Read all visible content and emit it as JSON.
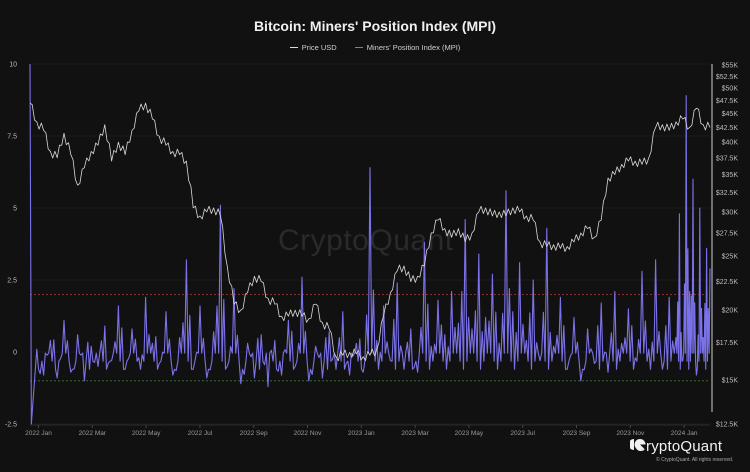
{
  "chart_data": {
    "type": "line",
    "title": "Bitcoin: Miners' Position Index (MPI)",
    "legend": [
      {
        "name": "Price USD",
        "color": "#d9d9d9"
      },
      {
        "name": "Miners' Position Index (MPI)",
        "color": "#7b72e9"
      }
    ],
    "legend_position": "top",
    "grid": true,
    "x_ticks": [
      "2022 Jan",
      "2022 Mar",
      "2022 May",
      "2022 Jul",
      "2022 Sep",
      "2022 Nov",
      "2023 Jan",
      "2023 Mar",
      "2023 May",
      "2023 Jul",
      "2023 Sep",
      "2023 Nov",
      "2024 Jan"
    ],
    "left_axis": {
      "label": "MPI",
      "ticks": [
        "10",
        "7.5",
        "5",
        "2.5",
        "0",
        "-2.5"
      ],
      "ylim": [
        -2.5,
        10
      ]
    },
    "right_axis": {
      "label": "Price USD",
      "scale": "log",
      "ticks": [
        "$55K",
        "$52.5K",
        "$50K",
        "$47.5K",
        "$45K",
        "$42.5K",
        "$40K",
        "$37.5K",
        "$35K",
        "$32.5K",
        "$30K",
        "$27.5K",
        "$25K",
        "$22.5K",
        "$20K",
        "$17.5K",
        "$15K",
        "$12.5K"
      ],
      "ylim": [
        12500,
        55000
      ]
    },
    "reference_lines": [
      {
        "value": 2.0,
        "axis": "left",
        "color": "#b03a3a",
        "style": "dashed"
      },
      {
        "value": -1.0,
        "axis": "left",
        "color": "#3f7a3a",
        "style": "dashed"
      }
    ],
    "x_range": [
      "2022-01-01",
      "2024-02-01"
    ],
    "series": [
      {
        "name": "Price USD",
        "color": "#d9d9d9",
        "x_frac": [
          0.0,
          0.01,
          0.02,
          0.03,
          0.04,
          0.05,
          0.06,
          0.07,
          0.08,
          0.09,
          0.1,
          0.11,
          0.12,
          0.13,
          0.14,
          0.15,
          0.16,
          0.17,
          0.18,
          0.19,
          0.2,
          0.21,
          0.22,
          0.23,
          0.24,
          0.25,
          0.26,
          0.27,
          0.28,
          0.29,
          0.3,
          0.31,
          0.32,
          0.33,
          0.34,
          0.35,
          0.36,
          0.37,
          0.38,
          0.39,
          0.4,
          0.41,
          0.42,
          0.43,
          0.44,
          0.45,
          0.46,
          0.47,
          0.48,
          0.49,
          0.5,
          0.51,
          0.52,
          0.53,
          0.54,
          0.55,
          0.56,
          0.57,
          0.58,
          0.59,
          0.6,
          0.61,
          0.62,
          0.63,
          0.64,
          0.65,
          0.66,
          0.67,
          0.68,
          0.69,
          0.7,
          0.71,
          0.72,
          0.73,
          0.74,
          0.75,
          0.76,
          0.77,
          0.78,
          0.79,
          0.8,
          0.81,
          0.82,
          0.83,
          0.84,
          0.85,
          0.86,
          0.87,
          0.88,
          0.89,
          0.9,
          0.91,
          0.92,
          0.93,
          0.94,
          0.95,
          0.96,
          0.97,
          0.98,
          0.99,
          1.0
        ],
        "values": [
          47000,
          43500,
          42000,
          38500,
          37500,
          41500,
          38000,
          33500,
          36000,
          38500,
          39500,
          43000,
          37000,
          40000,
          38000,
          42000,
          45500,
          47000,
          44000,
          41000,
          39500,
          38500,
          38000,
          37000,
          30500,
          29500,
          30000,
          30500,
          29500,
          24000,
          20500,
          20000,
          21500,
          23000,
          22500,
          21000,
          20500,
          19500,
          19500,
          20000,
          19500,
          19300,
          20500,
          19000,
          18500,
          16500,
          16600,
          16800,
          16700,
          16500,
          16600,
          17000,
          19500,
          21500,
          23500,
          24000,
          22500,
          23000,
          24000,
          27500,
          29000,
          28000,
          27000,
          28000,
          26500,
          27500,
          30000,
          30500,
          29500,
          30000,
          29500,
          30500,
          30000,
          29500,
          29000,
          26500,
          26000,
          26200,
          25800,
          26000,
          26500,
          27500,
          28000,
          27000,
          29000,
          34500,
          35000,
          36500,
          37000,
          37000,
          36500,
          37500,
          42500,
          43000,
          42000,
          43500,
          44000,
          42500,
          46000,
          43000,
          42500
        ]
      },
      {
        "name": "Miners' Position Index (MPI)",
        "color": "#7b72e9",
        "x_frac": [
          0.0,
          0.002,
          0.01,
          0.02,
          0.03,
          0.04,
          0.05,
          0.06,
          0.07,
          0.08,
          0.09,
          0.1,
          0.11,
          0.12,
          0.13,
          0.14,
          0.15,
          0.16,
          0.17,
          0.18,
          0.19,
          0.2,
          0.21,
          0.22,
          0.23,
          0.24,
          0.25,
          0.26,
          0.27,
          0.28,
          0.29,
          0.3,
          0.31,
          0.32,
          0.33,
          0.34,
          0.35,
          0.36,
          0.37,
          0.38,
          0.39,
          0.4,
          0.41,
          0.42,
          0.43,
          0.44,
          0.45,
          0.46,
          0.47,
          0.48,
          0.49,
          0.5,
          0.51,
          0.52,
          0.53,
          0.54,
          0.55,
          0.56,
          0.57,
          0.58,
          0.59,
          0.6,
          0.61,
          0.62,
          0.63,
          0.64,
          0.65,
          0.66,
          0.67,
          0.68,
          0.69,
          0.7,
          0.71,
          0.72,
          0.73,
          0.74,
          0.75,
          0.76,
          0.77,
          0.78,
          0.79,
          0.8,
          0.81,
          0.82,
          0.83,
          0.84,
          0.85,
          0.86,
          0.87,
          0.88,
          0.89,
          0.9,
          0.91,
          0.92,
          0.93,
          0.94,
          0.95,
          0.955,
          0.96,
          0.965,
          0.97,
          0.975,
          0.98,
          0.985,
          0.99,
          0.995,
          1.0
        ],
        "values": [
          10.0,
          -2.5,
          0.1,
          -0.8,
          0.4,
          -0.9,
          1.1,
          -0.7,
          0.6,
          -1.0,
          0.2,
          -0.5,
          0.9,
          -0.3,
          1.6,
          -0.6,
          0.8,
          -0.2,
          1.9,
          0.3,
          -0.4,
          1.4,
          -0.8,
          0.5,
          3.2,
          -0.6,
          1.6,
          -0.9,
          0.7,
          5.1,
          -0.5,
          2.2,
          -1.1,
          0.3,
          -0.9,
          0.6,
          -1.2,
          0.4,
          -0.8,
          1.1,
          -0.5,
          2.6,
          -1.0,
          0.2,
          -0.9,
          0.7,
          -0.6,
          1.4,
          -0.8,
          0.3,
          -0.7,
          6.4,
          0.4,
          1.6,
          -0.3,
          2.4,
          -0.6,
          0.8,
          -0.7,
          3.8,
          0.2,
          1.8,
          0.6,
          2.1,
          1.0,
          4.6,
          0.8,
          3.4,
          1.2,
          2.7,
          0.3,
          5.6,
          1.4,
          3.1,
          0.4,
          2.5,
          -0.3,
          4.3,
          0.2,
          1.9,
          -0.6,
          1.2,
          -1.0,
          0.8,
          -0.4,
          1.7,
          -0.7,
          2.1,
          0.3,
          1.5,
          -0.2,
          2.8,
          0.1,
          3.2,
          -0.6,
          1.9,
          0.5,
          4.8,
          -0.3,
          8.9,
          2.1,
          6.0,
          -0.8,
          5.0,
          0.5,
          3.6,
          2.9
        ]
      }
    ]
  },
  "header": {
    "title": "Bitcoin: Miners' Position Index (MPI)",
    "legend_price": "Price USD",
    "legend_mpi": "Miners' Position Index (MPI)"
  },
  "footer": {
    "brand": "CryptoQuant",
    "copyright": "© CryptoQuant. All rights reserved."
  },
  "watermark": "CryptoQuant"
}
